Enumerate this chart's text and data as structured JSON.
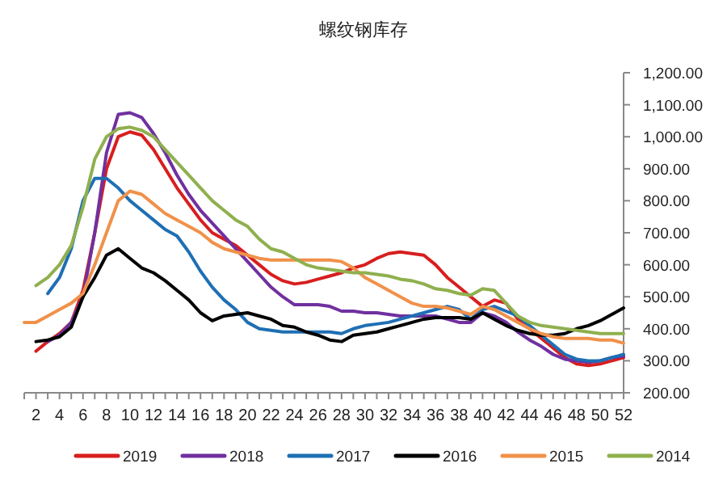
{
  "chart_data": {
    "type": "line",
    "title": "螺纹钢库存",
    "xlim": [
      1,
      52
    ],
    "xticks": [
      {
        "value": 1,
        "label": null
      },
      2,
      {
        "value": 3,
        "label": null
      },
      4,
      {
        "value": 5,
        "label": null
      },
      6,
      {
        "value": 7,
        "label": null
      },
      8,
      {
        "value": 9,
        "label": null
      },
      10,
      {
        "value": 11,
        "label": null
      },
      12,
      {
        "value": 13,
        "label": null
      },
      14,
      {
        "value": 15,
        "label": null
      },
      16,
      {
        "value": 17,
        "label": null
      },
      18,
      {
        "value": 19,
        "label": null
      },
      20,
      {
        "value": 21,
        "label": null
      },
      22,
      {
        "value": 23,
        "label": null
      },
      24,
      {
        "value": 25,
        "label": null
      },
      26,
      {
        "value": 27,
        "label": null
      },
      28,
      {
        "value": 29,
        "label": null
      },
      30,
      {
        "value": 31,
        "label": null
      },
      32,
      {
        "value": 33,
        "label": null
      },
      34,
      {
        "value": 35,
        "label": null
      },
      36,
      {
        "value": 37,
        "label": null
      },
      38,
      {
        "value": 39,
        "label": null
      },
      40,
      {
        "value": 41,
        "label": null
      },
      42,
      {
        "value": 43,
        "label": null
      },
      44,
      {
        "value": 45,
        "label": null
      },
      46,
      {
        "value": 47,
        "label": null
      },
      48,
      {
        "value": 49,
        "label": null
      },
      50,
      {
        "value": 51,
        "label": null
      },
      52
    ],
    "ylim": [
      200,
      1200
    ],
    "yticks": [
      {
        "value": 200,
        "label": "200.00"
      },
      {
        "value": 300,
        "label": "300.00"
      },
      {
        "value": 400,
        "label": "400.00"
      },
      {
        "value": 500,
        "label": "500.00"
      },
      {
        "value": 600,
        "label": "600.00"
      },
      {
        "value": 700,
        "label": "700.00"
      },
      {
        "value": 800,
        "label": "800.00"
      },
      {
        "value": 900,
        "label": "900.00"
      },
      {
        "value": 1000,
        "label": "1,000.00"
      },
      {
        "value": 1100,
        "label": "1,100.00"
      },
      {
        "value": 1200,
        "label": "1,200.00"
      }
    ],
    "grid": false,
    "legend": "bottom",
    "marker": "none",
    "line_style": "solid",
    "series": [
      {
        "name": "2019",
        "color": "#d81e1e",
        "x": [
          2,
          3,
          4,
          5,
          6,
          7,
          8,
          9,
          10,
          11,
          12,
          13,
          14,
          15,
          16,
          17,
          18,
          19,
          20,
          21,
          22,
          23,
          24,
          25,
          26,
          27,
          28,
          29,
          30,
          31,
          32,
          33,
          34,
          35,
          36,
          37,
          38,
          39,
          40,
          41,
          42,
          43,
          44,
          45,
          46,
          47,
          48,
          49,
          50,
          51,
          52
        ],
        "values": [
          330,
          360,
          385,
          420,
          520,
          700,
          900,
          1000,
          1015,
          1005,
          960,
          900,
          840,
          790,
          740,
          700,
          680,
          660,
          630,
          600,
          570,
          550,
          540,
          545,
          555,
          565,
          575,
          590,
          600,
          620,
          635,
          640,
          635,
          630,
          600,
          560,
          530,
          500,
          470,
          490,
          480,
          430,
          400,
          370,
          340,
          310,
          290,
          285,
          290,
          300,
          310
        ]
      },
      {
        "name": "2018",
        "color": "#7030a0",
        "x": [
          3,
          4,
          5,
          6,
          7,
          8,
          9,
          10,
          11,
          12,
          13,
          14,
          15,
          16,
          17,
          18,
          19,
          20,
          21,
          22,
          23,
          24,
          25,
          26,
          27,
          28,
          29,
          30,
          31,
          32,
          33,
          34,
          35,
          36,
          37,
          38,
          39,
          40,
          41,
          42,
          43,
          44,
          45,
          46,
          47,
          48,
          49,
          50,
          51,
          52
        ],
        "values": [
          360,
          380,
          420,
          500,
          700,
          950,
          1070,
          1075,
          1060,
          1010,
          950,
          880,
          820,
          770,
          730,
          690,
          650,
          610,
          570,
          530,
          500,
          475,
          475,
          475,
          470,
          455,
          455,
          450,
          450,
          445,
          440,
          440,
          440,
          440,
          430,
          420,
          420,
          450,
          440,
          420,
          390,
          365,
          345,
          320,
          305,
          300,
          295,
          300,
          310,
          315
        ]
      },
      {
        "name": "2017",
        "color": "#1f6fb4",
        "x": [
          3,
          4,
          5,
          6,
          7,
          8,
          9,
          10,
          11,
          12,
          13,
          14,
          15,
          16,
          17,
          18,
          19,
          20,
          21,
          22,
          23,
          24,
          25,
          26,
          27,
          28,
          29,
          30,
          31,
          32,
          33,
          34,
          35,
          36,
          37,
          38,
          39,
          40,
          41,
          42,
          43,
          44,
          45,
          46,
          47,
          48,
          49,
          50,
          51,
          52
        ],
        "values": [
          510,
          560,
          650,
          800,
          870,
          870,
          840,
          800,
          770,
          740,
          710,
          690,
          640,
          580,
          530,
          490,
          460,
          420,
          400,
          395,
          390,
          390,
          390,
          390,
          390,
          385,
          400,
          410,
          415,
          420,
          430,
          440,
          450,
          460,
          470,
          460,
          430,
          460,
          470,
          455,
          440,
          410,
          380,
          350,
          320,
          305,
          300,
          300,
          310,
          320
        ]
      },
      {
        "name": "2016",
        "color": "#000000",
        "x": [
          2,
          3,
          4,
          5,
          6,
          7,
          8,
          9,
          10,
          11,
          12,
          13,
          14,
          15,
          16,
          17,
          18,
          19,
          20,
          21,
          22,
          23,
          24,
          25,
          26,
          27,
          28,
          29,
          30,
          31,
          32,
          33,
          34,
          35,
          36,
          37,
          38,
          39,
          40,
          41,
          42,
          43,
          44,
          45,
          46,
          47,
          48,
          49,
          50,
          51,
          52
        ],
        "values": [
          360,
          365,
          375,
          405,
          500,
          560,
          630,
          650,
          620,
          590,
          575,
          550,
          520,
          490,
          450,
          425,
          440,
          445,
          450,
          440,
          430,
          410,
          405,
          390,
          380,
          365,
          360,
          380,
          385,
          390,
          400,
          410,
          420,
          430,
          435,
          435,
          435,
          430,
          450,
          430,
          410,
          395,
          385,
          380,
          380,
          385,
          400,
          410,
          425,
          445,
          465
        ]
      },
      {
        "name": "2015",
        "color": "#f0914a",
        "x": [
          1,
          2,
          3,
          4,
          5,
          6,
          7,
          8,
          9,
          10,
          11,
          12,
          13,
          14,
          15,
          16,
          17,
          18,
          19,
          20,
          21,
          22,
          23,
          24,
          25,
          26,
          27,
          28,
          29,
          30,
          31,
          32,
          33,
          34,
          35,
          36,
          37,
          38,
          39,
          40,
          41,
          42,
          43,
          44,
          45,
          46,
          47,
          48,
          49,
          50,
          51,
          52
        ],
        "values": [
          420,
          420,
          440,
          460,
          480,
          510,
          600,
          700,
          800,
          830,
          820,
          790,
          760,
          740,
          720,
          700,
          670,
          650,
          640,
          630,
          620,
          615,
          615,
          615,
          615,
          615,
          615,
          610,
          590,
          560,
          540,
          520,
          500,
          480,
          470,
          470,
          465,
          455,
          445,
          470,
          460,
          440,
          420,
          400,
          385,
          375,
          370,
          370,
          370,
          365,
          365,
          355
        ]
      },
      {
        "name": "2014",
        "color": "#8fb04e",
        "x": [
          2,
          3,
          4,
          5,
          6,
          7,
          8,
          9,
          10,
          11,
          12,
          13,
          14,
          15,
          16,
          17,
          18,
          19,
          20,
          21,
          22,
          23,
          24,
          25,
          26,
          27,
          28,
          29,
          30,
          31,
          32,
          33,
          34,
          35,
          36,
          37,
          38,
          39,
          40,
          41,
          42,
          43,
          44,
          45,
          46,
          47,
          48,
          49,
          50,
          51,
          52
        ],
        "values": [
          535,
          560,
          600,
          660,
          780,
          930,
          1000,
          1025,
          1030,
          1020,
          1000,
          960,
          920,
          880,
          840,
          800,
          770,
          740,
          720,
          680,
          650,
          640,
          620,
          600,
          590,
          585,
          580,
          575,
          575,
          570,
          565,
          555,
          550,
          540,
          525,
          520,
          510,
          505,
          525,
          520,
          480,
          440,
          420,
          410,
          405,
          400,
          395,
          390,
          385,
          385,
          385
        ]
      }
    ]
  }
}
